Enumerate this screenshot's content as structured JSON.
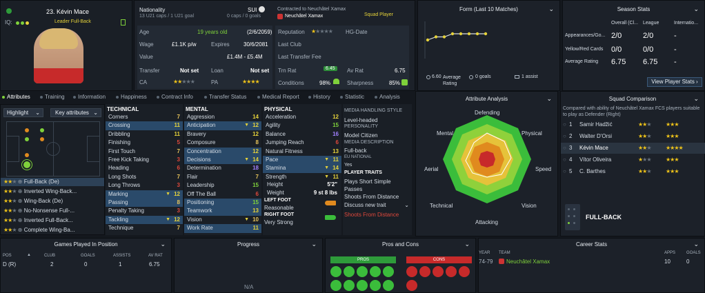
{
  "player": {
    "name": "23. Kévin Mace",
    "role": "Leader Full-Back",
    "iq_label": "IQ:",
    "nat_label": "Nationality",
    "nat_val": "SUI",
    "caps": "13 U21 caps / 1 U21 goal",
    "senior_caps": "0 caps / 0 goals",
    "contract": "Contracted to Neuchâtel Xamax",
    "club": "Neuchâtel Xamax",
    "squad_status": "Squad Player"
  },
  "info": {
    "age_label": "Age",
    "age": "19 years old",
    "dob": "(2/6/2059)",
    "wage_label": "Wage",
    "wage": "£1.1K p/w",
    "expires_label": "Expires",
    "expires": "30/6/2081",
    "value_label": "Value",
    "value": "£1.4M - £5.4M",
    "transfer_label": "Transfer",
    "transfer": "Not set",
    "loan_label": "Loan",
    "loan": "Not set",
    "ca_label": "CA",
    "pa_label": "PA",
    "reputation_label": "Reputation",
    "hg_label": "HG-Date",
    "last_club_label": "Last Club",
    "last_fee_label": "Last Transfer Fee",
    "trn_label": "Trn Rat",
    "trn": "6.45",
    "av_label": "Av Rat",
    "av": "6.75",
    "cond_label": "Conditions",
    "cond": "98%",
    "sharp_label": "Sharpness",
    "sharp": "85%"
  },
  "form": {
    "title": "Form (Last 10 Matches)",
    "avg_val": "6.60",
    "avg_label": "Average Rating",
    "goals": "0 goals",
    "assists": "1 assist",
    "points": [
      6.6,
      6.7,
      6.7,
      6.8,
      6.8,
      6.8,
      6.8,
      6.8
    ]
  },
  "season": {
    "title": "Season Stats",
    "cols": [
      "Overall (Cl...",
      "League",
      "Internatio..."
    ],
    "rows": [
      {
        "label": "Appearances/Go...",
        "vals": [
          "2/0",
          "2/0",
          "-"
        ]
      },
      {
        "label": "Yellow/Red Cards",
        "vals": [
          "0/0",
          "0/0",
          "-"
        ]
      },
      {
        "label": "Average Rating",
        "vals": [
          "6.75",
          "6.75",
          "-"
        ]
      }
    ],
    "btn": "View Player Stats"
  },
  "tabs": [
    "Attributes",
    "Training",
    "Information",
    "Happiness",
    "Contract Info",
    "Transfer Status",
    "Medical Report",
    "History",
    "Statistic",
    "Analysis"
  ],
  "left": {
    "highlight": "Highlight",
    "key_attrs": "Key attributes",
    "roles": [
      "Full-Back (De)",
      "Inverted Wing-Back...",
      "Wing-Back (De)",
      "No-Nonsense Full-...",
      "Inverted Full-Back...",
      "Complete Wing-Ba..."
    ]
  },
  "technical": {
    "title": "TECHNICAL",
    "items": [
      {
        "n": "Corners",
        "v": "7"
      },
      {
        "n": "Crossing",
        "v": "11"
      },
      {
        "n": "Dribbling",
        "v": "11"
      },
      {
        "n": "Finishing",
        "v": "5"
      },
      {
        "n": "First Touch",
        "v": "7"
      },
      {
        "n": "Free Kick Taking",
        "v": "3"
      },
      {
        "n": "Heading",
        "v": "6"
      },
      {
        "n": "Long Shots",
        "v": "7"
      },
      {
        "n": "Long Throws",
        "v": "3"
      },
      {
        "n": "Marking",
        "v": "12"
      },
      {
        "n": "Passing",
        "v": "8"
      },
      {
        "n": "Penalty Taking",
        "v": "3"
      },
      {
        "n": "Tackling",
        "v": "12"
      },
      {
        "n": "Technique",
        "v": "7"
      }
    ]
  },
  "mental": {
    "title": "MENTAL",
    "items": [
      {
        "n": "Aggression",
        "v": "14"
      },
      {
        "n": "Anticipation",
        "v": "12"
      },
      {
        "n": "Bravery",
        "v": "12"
      },
      {
        "n": "Composure",
        "v": "8"
      },
      {
        "n": "Concentration",
        "v": "12"
      },
      {
        "n": "Decisions",
        "v": "14"
      },
      {
        "n": "Determination",
        "v": "18"
      },
      {
        "n": "Flair",
        "v": "7"
      },
      {
        "n": "Leadership",
        "v": "15"
      },
      {
        "n": "Off The Ball",
        "v": "6"
      },
      {
        "n": "Positioning",
        "v": "15"
      },
      {
        "n": "Teamwork",
        "v": "13"
      },
      {
        "n": "Vision",
        "v": "10"
      },
      {
        "n": "Work Rate",
        "v": "11"
      }
    ]
  },
  "physical": {
    "title": "PHYSICAL",
    "items": [
      {
        "n": "Acceleration",
        "v": "12"
      },
      {
        "n": "Agility",
        "v": "15"
      },
      {
        "n": "Balance",
        "v": "16"
      },
      {
        "n": "Jumping Reach",
        "v": "6"
      },
      {
        "n": "Natural Fitness",
        "v": "13"
      },
      {
        "n": "Pace",
        "v": "11"
      },
      {
        "n": "Stamina",
        "v": "14"
      },
      {
        "n": "Strength",
        "v": "11"
      }
    ],
    "height_label": "Height",
    "height": "5'2\"",
    "weight_label": "Weight",
    "weight": "9 st 8 lbs",
    "left_foot_label": "LEFT FOOT",
    "left_foot": "Reasonable",
    "right_foot_label": "RIGHT FOOT",
    "right_foot": "Very Strong"
  },
  "media": {
    "mh_title": "MEDIA HANDLING STYLE",
    "mh": "Level-headed",
    "pers_title": "PERSONALITY",
    "pers": "Model Citizen",
    "desc_title": "MEDIA DESCRIPTION",
    "desc": "Full-back",
    "eu_title": "EU NATIONAL",
    "eu": "Yes",
    "traits_title": "PLAYER TRAITS",
    "traits": [
      "Plays Short Simple Passes",
      "Shoots From Distance"
    ],
    "discuss": "Discuss new trait",
    "trait_red": "Shoots From Distance"
  },
  "analysis": {
    "title": "Attribute Analysis",
    "labels": [
      "Defending",
      "Physical",
      "Speed",
      "Vision",
      "Attacking",
      "Technical",
      "Aerial",
      "Mental"
    ]
  },
  "squad": {
    "title": "Squad Comparison",
    "desc": "Compared with ability of Neuchâtel Xamax FCS players suitable to play as Defender (Right)",
    "rows": [
      {
        "n": "1",
        "name": "Samir Hadžić"
      },
      {
        "n": "2",
        "name": "Walter D'Orsi"
      },
      {
        "n": "3",
        "name": "Kévin Mace"
      },
      {
        "n": "4",
        "name": "Vítor Oliveira"
      },
      {
        "n": "5",
        "name": "C. Barthes"
      }
    ],
    "position": "FULL-BACK"
  },
  "bottom": {
    "games_title": "Games Played In Position",
    "games_cols": [
      "POS",
      "CLUB",
      "GOALS",
      "ASSISTS",
      "AV RAT"
    ],
    "games_row": [
      "D (R)",
      "2",
      "0",
      "1",
      "6.75"
    ],
    "progress_title": "Progress",
    "progress_na": "N/A",
    "pros_title": "Pros and Cons",
    "pros": "PROS",
    "cons": "CONS",
    "career_title": "Career Stats",
    "career_cols": [
      "YEAR",
      "TEAM",
      "APPS",
      "GOALS"
    ],
    "career_row": [
      "74-79",
      "Neuchâtel Xamax",
      "10",
      "0"
    ]
  }
}
